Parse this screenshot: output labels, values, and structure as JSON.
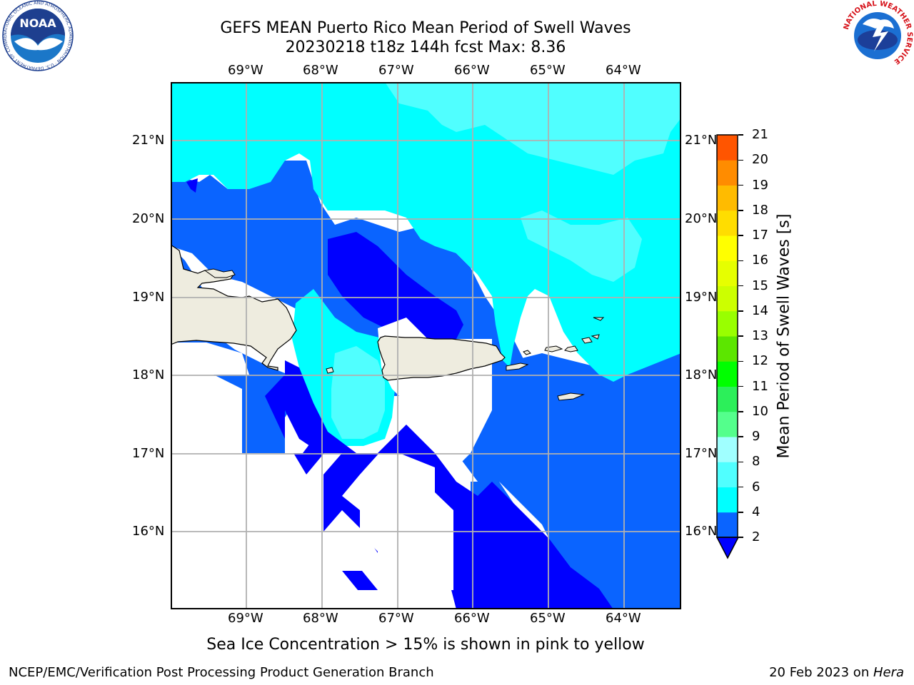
{
  "header": {
    "title_line1": "GEFS MEAN Puerto Rico Mean Period of Swell Waves",
    "title_line2": "20230218 t18z 144h fcst   Max: 8.36"
  },
  "map": {
    "region": "Puerto Rico",
    "lon_ticks": [
      "69°W",
      "68°W",
      "67°W",
      "66°W",
      "65°W",
      "64°W"
    ],
    "lat_ticks": [
      "21°N",
      "20°N",
      "19°N",
      "18°N",
      "17°N",
      "16°N"
    ],
    "extent": {
      "lon": [
        -70.0,
        -63.25
      ],
      "lat": [
        15.0,
        21.75
      ]
    },
    "land_color": "#eeecdf",
    "grid_color": "#b0b0b0"
  },
  "colorbar": {
    "label": "Mean Period of Swell Waves [s]",
    "ticks": [
      "2",
      "4",
      "6",
      "8",
      "9",
      "10",
      "11",
      "12",
      "13",
      "14",
      "15",
      "16",
      "17",
      "18",
      "19",
      "20",
      "21"
    ],
    "colors": [
      "#0a64ff",
      "#00ffff",
      "#50ffff",
      "#a0ffff",
      "#54ff8c",
      "#2cef5a",
      "#00ff00",
      "#5ce600",
      "#99ff00",
      "#ccff00",
      "#e6ff00",
      "#ffff00",
      "#ffdd00",
      "#ffbb00",
      "#ff8c00",
      "#ff5500",
      "#ff2000",
      "#ff0000"
    ],
    "extend_low_color": "#0000ff"
  },
  "field_colors": {
    "lt2": "#0000ff",
    "c2_4": "#0a64ff",
    "c4_6": "#00ffff",
    "c6_8": "#50ffff",
    "nodata": "#ffffff"
  },
  "caption": "Sea Ice Concentration > 15% is shown in pink to yellow",
  "footer": {
    "left": "NCEP/EMC/Verification Post Processing Product Generation Branch",
    "right_date": "20 Feb 2023 on ",
    "right_system": "Hera"
  },
  "logos": {
    "noaa_text": "NOAA",
    "noaa_ring_text": "NATIONAL OCEANIC AND ATMOSPHERIC ADMINISTRATION · U.S. DEPARTMENT OF COMMERCE",
    "nws_ring_text": "NATIONAL WEATHER SERVICE"
  }
}
